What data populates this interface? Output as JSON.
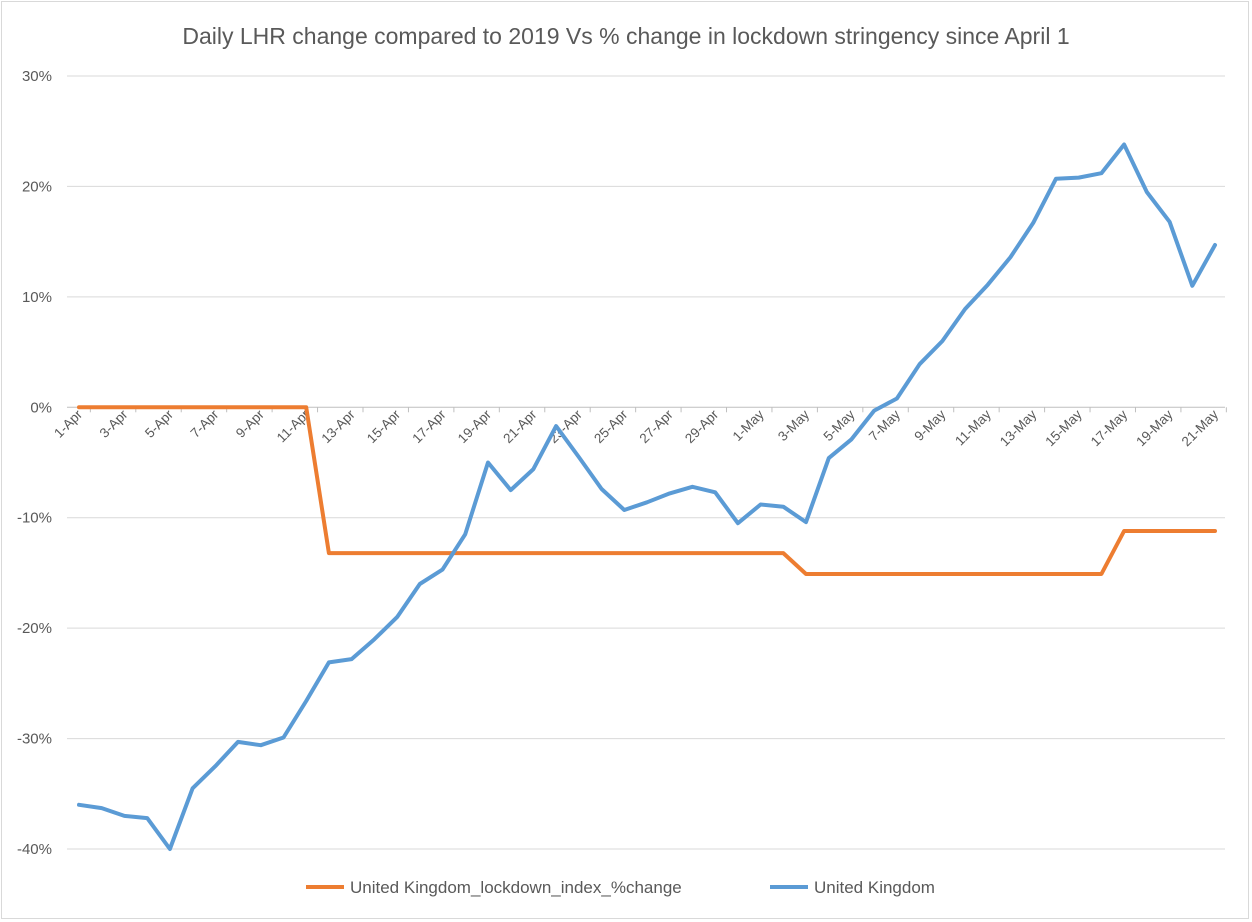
{
  "chart_data": {
    "type": "line",
    "title": "Daily LHR change compared to 2019 Vs % change in lockdown stringency since April 1",
    "xlabel": "",
    "ylabel": "",
    "ylim": [
      -40,
      30
    ],
    "y_ticks": [
      30,
      20,
      10,
      0,
      -10,
      -20,
      -30,
      -40
    ],
    "y_tick_labels": [
      "30%",
      "20%",
      "10%",
      "0%",
      "-10%",
      "-20%",
      "-30%",
      "-40%"
    ],
    "grid": true,
    "legend_position": "bottom",
    "x": [
      "1-Apr",
      "2-Apr",
      "3-Apr",
      "4-Apr",
      "5-Apr",
      "6-Apr",
      "7-Apr",
      "8-Apr",
      "9-Apr",
      "10-Apr",
      "11-Apr",
      "12-Apr",
      "13-Apr",
      "14-Apr",
      "15-Apr",
      "16-Apr",
      "17-Apr",
      "18-Apr",
      "19-Apr",
      "20-Apr",
      "21-Apr",
      "22-Apr",
      "23-Apr",
      "24-Apr",
      "25-Apr",
      "26-Apr",
      "27-Apr",
      "28-Apr",
      "29-Apr",
      "30-Apr",
      "1-May",
      "2-May",
      "3-May",
      "4-May",
      "5-May",
      "6-May",
      "7-May",
      "8-May",
      "9-May",
      "10-May",
      "11-May",
      "12-May",
      "13-May",
      "14-May",
      "15-May",
      "16-May",
      "17-May",
      "18-May",
      "19-May",
      "20-May",
      "21-May"
    ],
    "x_tick_labels": [
      "1-Apr",
      "3-Apr",
      "5-Apr",
      "7-Apr",
      "9-Apr",
      "11-Apr",
      "13-Apr",
      "15-Apr",
      "17-Apr",
      "19-Apr",
      "21-Apr",
      "23-Apr",
      "25-Apr",
      "27-Apr",
      "29-Apr",
      "1-May",
      "3-May",
      "5-May",
      "7-May",
      "9-May",
      "11-May",
      "13-May",
      "15-May",
      "17-May",
      "19-May",
      "21-May"
    ],
    "series": [
      {
        "name": "United Kingdom_lockdown_index_%change",
        "color": "#ed7d31",
        "values": [
          0,
          0,
          0,
          0,
          0,
          0,
          0,
          0,
          0,
          0,
          0,
          -13.2,
          -13.2,
          -13.2,
          -13.2,
          -13.2,
          -13.2,
          -13.2,
          -13.2,
          -13.2,
          -13.2,
          -13.2,
          -13.2,
          -13.2,
          -13.2,
          -13.2,
          -13.2,
          -13.2,
          -13.2,
          -13.2,
          -13.2,
          -13.2,
          -15.1,
          -15.1,
          -15.1,
          -15.1,
          -15.1,
          -15.1,
          -15.1,
          -15.1,
          -15.1,
          -15.1,
          -15.1,
          -15.1,
          -15.1,
          -15.1,
          -11.2,
          -11.2,
          -11.2,
          -11.2,
          -11.2
        ]
      },
      {
        "name": "United Kingdom",
        "color": "#5b9bd5",
        "values": [
          -36,
          -36.3,
          -37,
          -37.2,
          -40,
          -34.5,
          -32.5,
          -30.3,
          -30.6,
          -29.9,
          -26.6,
          -23.1,
          -22.8,
          -21,
          -19,
          -16,
          -14.7,
          -11.5,
          -5,
          -7.5,
          -5.6,
          -1.7,
          -4.5,
          -7.4,
          -9.3,
          -8.6,
          -7.8,
          -7.2,
          -7.7,
          -10.5,
          -8.8,
          -9,
          -10.4,
          -4.6,
          -2.9,
          -0.3,
          0.8,
          3.9,
          6,
          8.9,
          11.1,
          13.6,
          16.7,
          20.7,
          20.8,
          21.2,
          23.8,
          19.5,
          16.8,
          11,
          14.7
        ]
      }
    ]
  }
}
